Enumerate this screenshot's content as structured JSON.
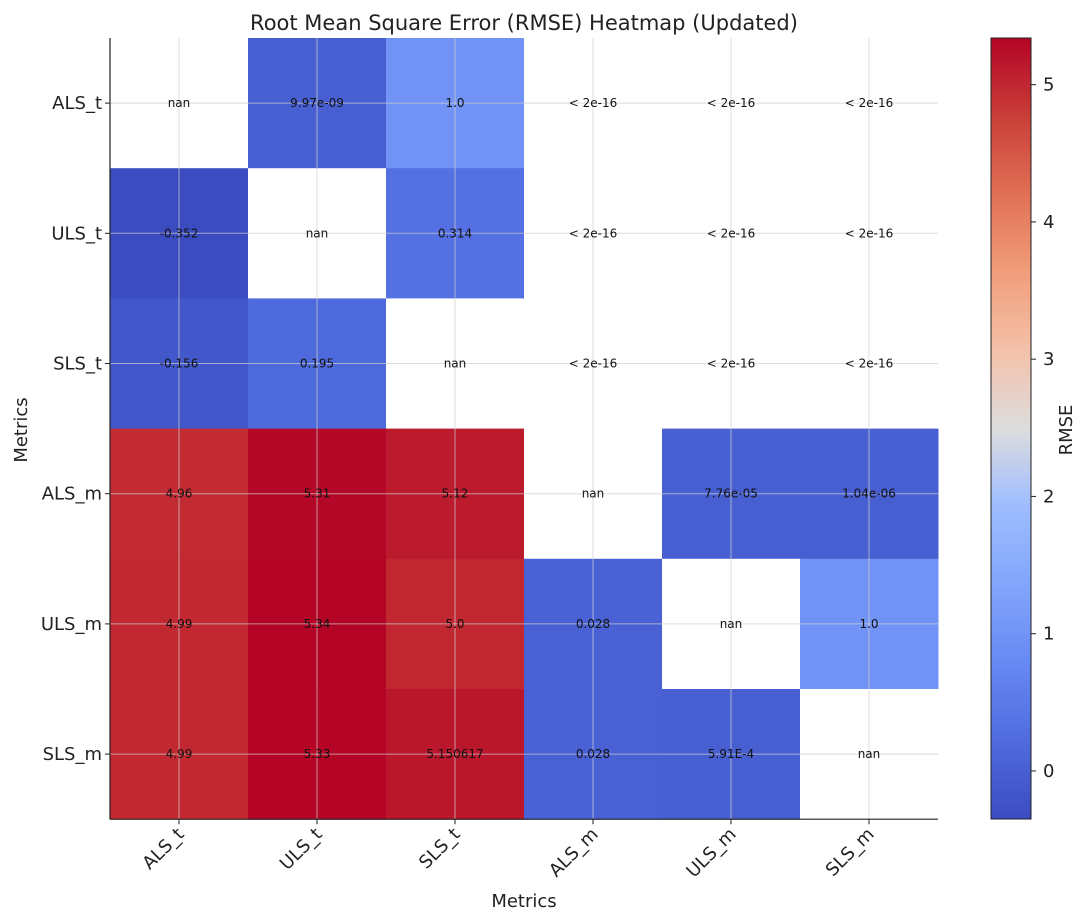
{
  "chart_data": {
    "type": "heatmap",
    "title": "Root Mean Square Error (RMSE) Heatmap (Updated)",
    "xlabel": "Metrics",
    "ylabel": "Metrics",
    "x_categories": [
      "ALS_t",
      "ULS_t",
      "SLS_t",
      "ALS_m",
      "ULS_m",
      "SLS_m"
    ],
    "y_categories": [
      "ALS_t",
      "ULS_t",
      "SLS_t",
      "ALS_m",
      "ULS_m",
      "SLS_m"
    ],
    "colorbar": {
      "label": "RMSE",
      "colormap": "coolwarm",
      "vmin": -0.35,
      "vmax": 5.34,
      "ticks": [
        0,
        1,
        2,
        3,
        4,
        5
      ],
      "tick_labels": [
        "0",
        "1",
        "2",
        "3",
        "4",
        "5"
      ]
    },
    "grid": true,
    "values": [
      [
        null,
        0.0,
        1.0,
        null,
        null,
        null
      ],
      [
        -0.352,
        null,
        0.314,
        null,
        null,
        null
      ],
      [
        -0.156,
        0.195,
        null,
        null,
        null,
        null
      ],
      [
        4.96,
        5.31,
        5.12,
        null,
        0.0,
        0.0
      ],
      [
        4.99,
        5.34,
        5.0,
        0.028,
        null,
        1.0
      ],
      [
        4.99,
        5.33,
        5.150617,
        0.028,
        0.0,
        null
      ]
    ],
    "labels": [
      [
        "nan",
        "9.97e-09",
        "1.0",
        "< 2e-16",
        "< 2e-16",
        "< 2e-16"
      ],
      [
        "-0.352",
        "nan",
        "0.314",
        "< 2e-16",
        "< 2e-16",
        "< 2e-16"
      ],
      [
        "-0.156",
        "0.195",
        "nan",
        "< 2e-16",
        "< 2e-16",
        "< 2e-16"
      ],
      [
        "4.96",
        "5.31",
        "5.12",
        "nan",
        "7.76e-05",
        "1.04e-06"
      ],
      [
        "4.99",
        "5.34",
        "5.0",
        "0.028",
        "nan",
        "1.0"
      ],
      [
        "4.99",
        "5.33",
        "5.150617",
        "0.028",
        "5.91E-4",
        "nan"
      ]
    ]
  }
}
